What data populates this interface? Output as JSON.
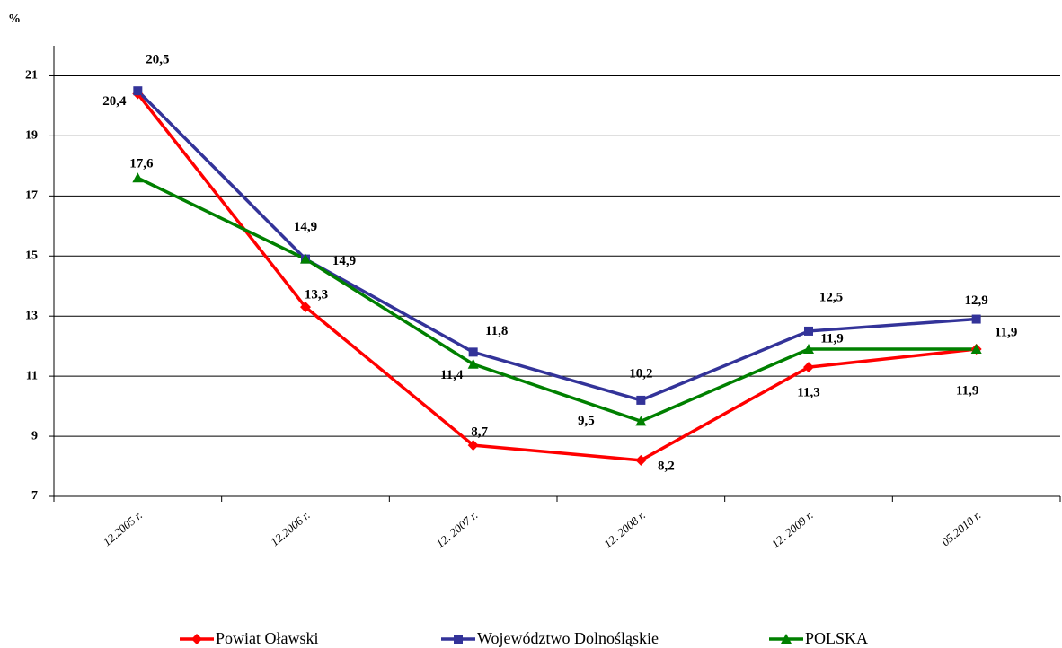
{
  "chart_data": {
    "type": "line",
    "y_label": "%",
    "categories": [
      "12.2005 r.",
      "12.2006 r.",
      "12. 2007 r.",
      "12. 2008 r.",
      "12. 2009 r.",
      "05.2010 r."
    ],
    "series": [
      {
        "name": "Powiat Oławski",
        "color": "#ff0000",
        "marker": "diamond",
        "values": [
          20.4,
          13.3,
          8.7,
          8.2,
          11.3,
          11.9
        ],
        "value_labels": [
          "20,4",
          "13,3",
          "8,7",
          "8,2",
          "11,3",
          "11,9"
        ]
      },
      {
        "name": "Województwo Dolnośląskie",
        "color": "#333399",
        "marker": "square",
        "values": [
          20.5,
          14.9,
          11.8,
          10.2,
          12.5,
          12.9
        ],
        "value_labels": [
          "20,5",
          "14,9",
          "11,8",
          "10,2",
          "12,5",
          "12,9"
        ]
      },
      {
        "name": "POLSKA",
        "color": "#008000",
        "marker": "triangle",
        "values": [
          17.6,
          14.9,
          11.4,
          9.5,
          11.9,
          11.9
        ],
        "value_labels": [
          "17,6",
          "14,9",
          "11,4",
          "9,5",
          "11,9",
          "11,9"
        ]
      }
    ],
    "ylim": [
      7,
      22
    ],
    "yticks": [
      7,
      9,
      11,
      13,
      15,
      17,
      19,
      21
    ],
    "grid": true,
    "legend": "bottom"
  }
}
